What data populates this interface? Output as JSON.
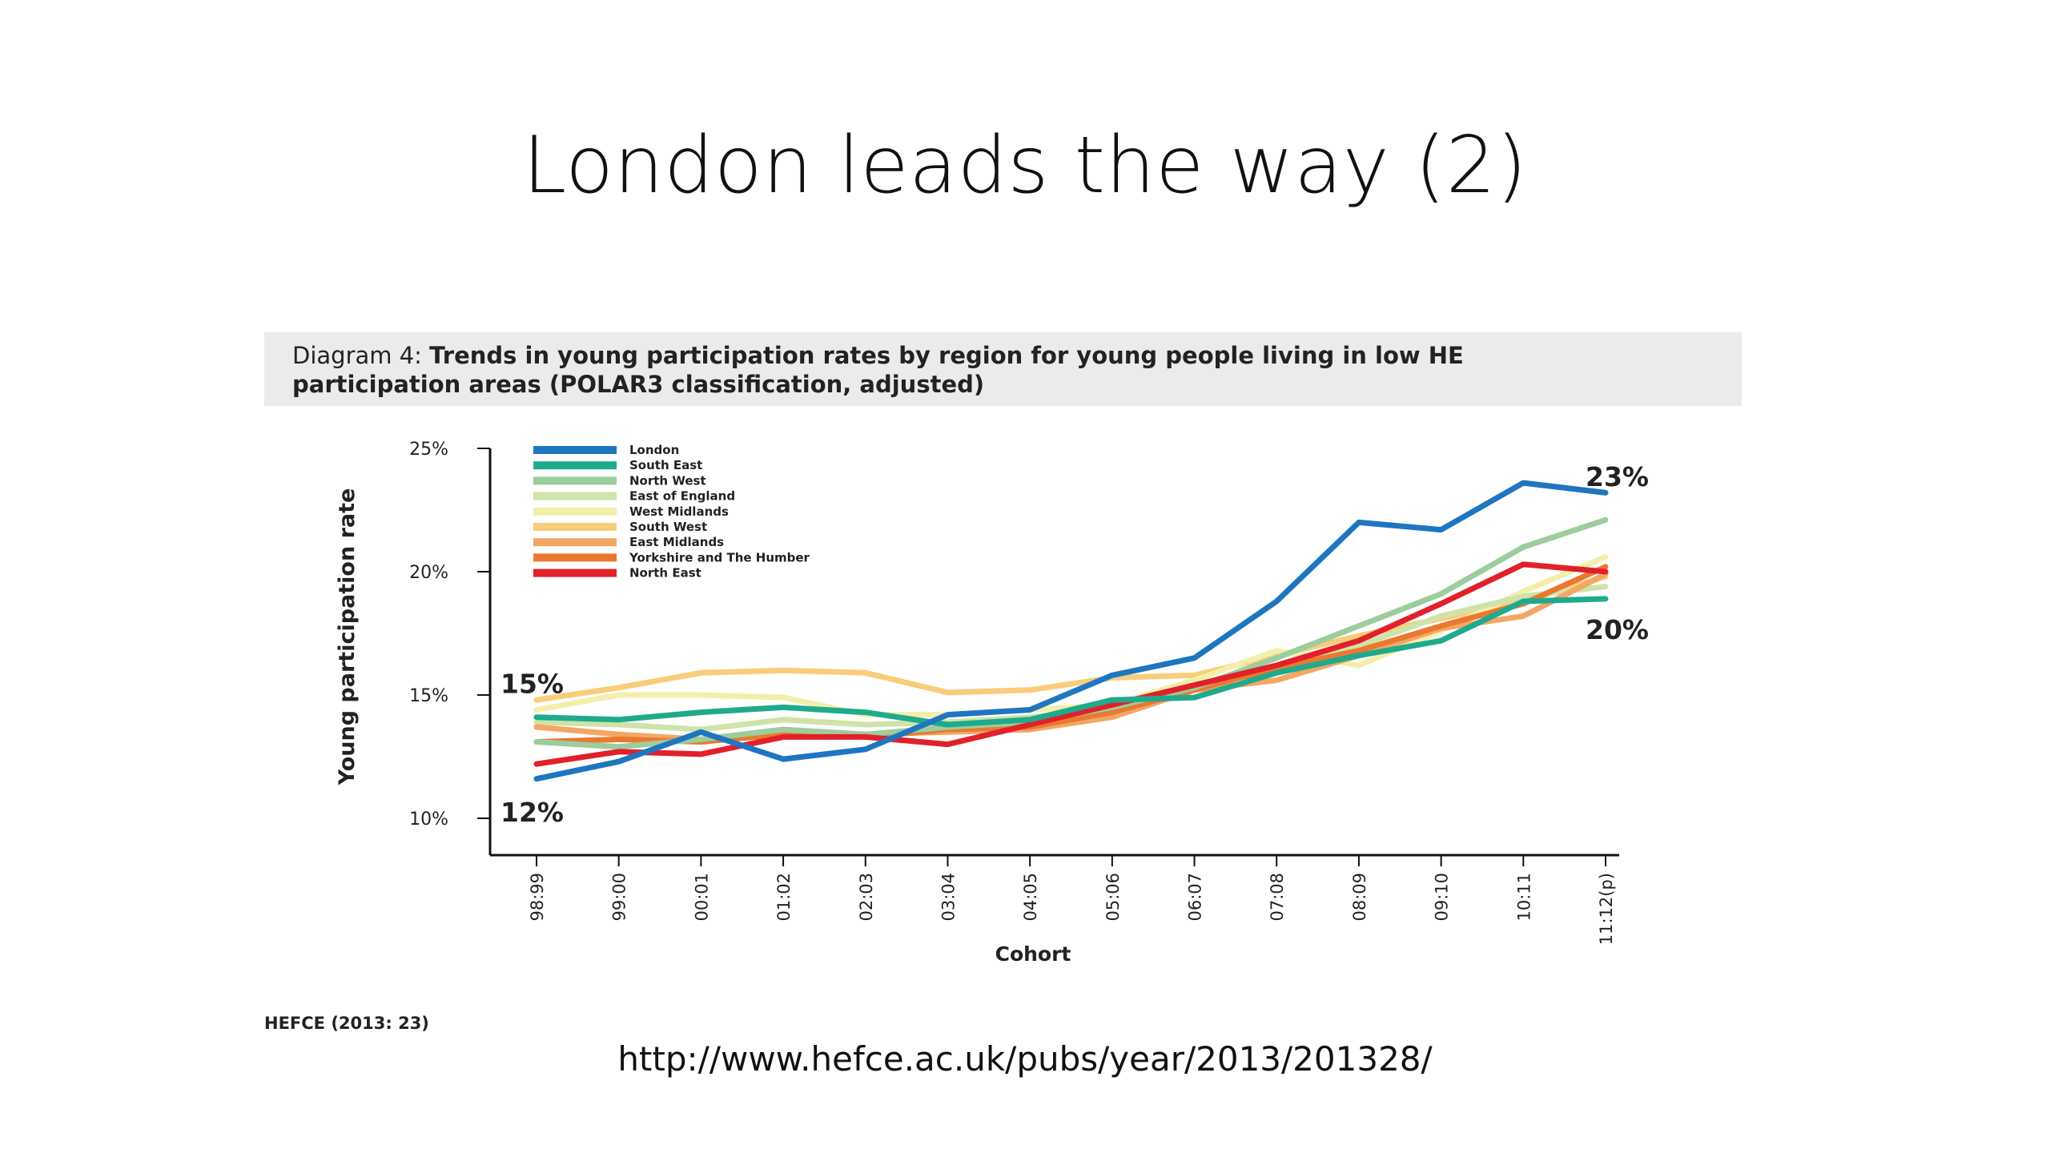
{
  "slide": {
    "title": "London leads the way (2)",
    "url": "http://www.hefce.ac.uk/pubs/year/2013/201328/"
  },
  "chart_data": {
    "type": "line",
    "title_prefix": "Diagram 4: ",
    "title_line1": "Trends in young participation rates by region for young people living in low HE",
    "title_line2": "participation areas (POLAR3 classification, adjusted)",
    "xlabel": "Cohort",
    "ylabel": "Young participation rate",
    "ylim": [
      10,
      25
    ],
    "yticks": [
      10,
      15,
      20,
      25
    ],
    "ytick_labels": [
      "10%",
      "15%",
      "20%",
      "25%"
    ],
    "categories": [
      "98:99",
      "99:00",
      "00:01",
      "01:02",
      "02:03",
      "03:04",
      "04:05",
      "05:06",
      "06:07",
      "07:08",
      "08:09",
      "09:10",
      "10:11",
      "11:12(p)"
    ],
    "legend_position": "top-left",
    "grid": false,
    "source": "HEFCE (2013: 23)",
    "annotations": [
      {
        "text": "15%",
        "x": "98:99",
        "y": 15.5,
        "pos": "left"
      },
      {
        "text": "12%",
        "x": "98:99",
        "y": 10.3,
        "pos": "left"
      },
      {
        "text": "23%",
        "x": "11:12(p)",
        "y": 23.9,
        "pos": "right"
      },
      {
        "text": "20%",
        "x": "11:12(p)",
        "y": 17.7,
        "pos": "right"
      }
    ],
    "series": [
      {
        "name": "South West",
        "color": "#f9cd7a",
        "values": [
          14.8,
          15.3,
          15.9,
          16.0,
          15.9,
          15.1,
          15.2,
          15.7,
          15.8,
          16.6,
          17.4,
          18.1,
          18.8,
          19.8
        ]
      },
      {
        "name": "West Midlands",
        "color": "#f3efaa",
        "values": [
          14.4,
          15.0,
          15.0,
          14.9,
          14.2,
          14.2,
          14.4,
          14.6,
          15.6,
          16.8,
          16.2,
          17.6,
          19.2,
          20.6
        ]
      },
      {
        "name": "East of England",
        "color": "#cfe3a9",
        "values": [
          13.9,
          13.8,
          13.6,
          14.0,
          13.8,
          13.9,
          14.1,
          14.4,
          15.3,
          16.2,
          17.0,
          18.2,
          19.0,
          19.4
        ]
      },
      {
        "name": "East Midlands",
        "color": "#f2a764",
        "values": [
          13.7,
          13.4,
          13.2,
          13.6,
          13.4,
          13.5,
          13.6,
          14.1,
          15.2,
          15.6,
          16.6,
          17.7,
          18.2,
          19.9
        ]
      },
      {
        "name": "Yorkshire and The Humber",
        "color": "#eb7830",
        "values": [
          13.1,
          13.2,
          13.1,
          13.4,
          13.3,
          13.6,
          13.7,
          14.3,
          15.2,
          16.1,
          16.8,
          17.8,
          18.7,
          20.2
        ]
      },
      {
        "name": "North West",
        "color": "#9ccd9c",
        "values": [
          13.1,
          12.9,
          13.2,
          13.6,
          13.4,
          13.7,
          13.9,
          14.5,
          15.3,
          16.5,
          17.8,
          19.1,
          21.0,
          22.1
        ]
      },
      {
        "name": "North East",
        "color": "#e2202a",
        "values": [
          12.2,
          12.7,
          12.6,
          13.3,
          13.3,
          13.0,
          13.8,
          14.6,
          15.4,
          16.2,
          17.2,
          18.7,
          20.3,
          20.0
        ]
      },
      {
        "name": "South East",
        "color": "#1faa8c",
        "values": [
          14.1,
          14.0,
          14.3,
          14.5,
          14.3,
          13.8,
          14.0,
          14.8,
          14.9,
          15.9,
          16.6,
          17.2,
          18.8,
          18.9
        ]
      },
      {
        "name": "London",
        "color": "#1e76c1",
        "values": [
          11.6,
          12.3,
          13.5,
          12.4,
          12.8,
          14.2,
          14.4,
          15.8,
          16.5,
          18.8,
          22.0,
          21.7,
          23.6,
          23.2
        ]
      }
    ],
    "legend_order": [
      "London",
      "South East",
      "North West",
      "East of England",
      "West Midlands",
      "South West",
      "East Midlands",
      "Yorkshire and The Humber",
      "North East"
    ]
  }
}
